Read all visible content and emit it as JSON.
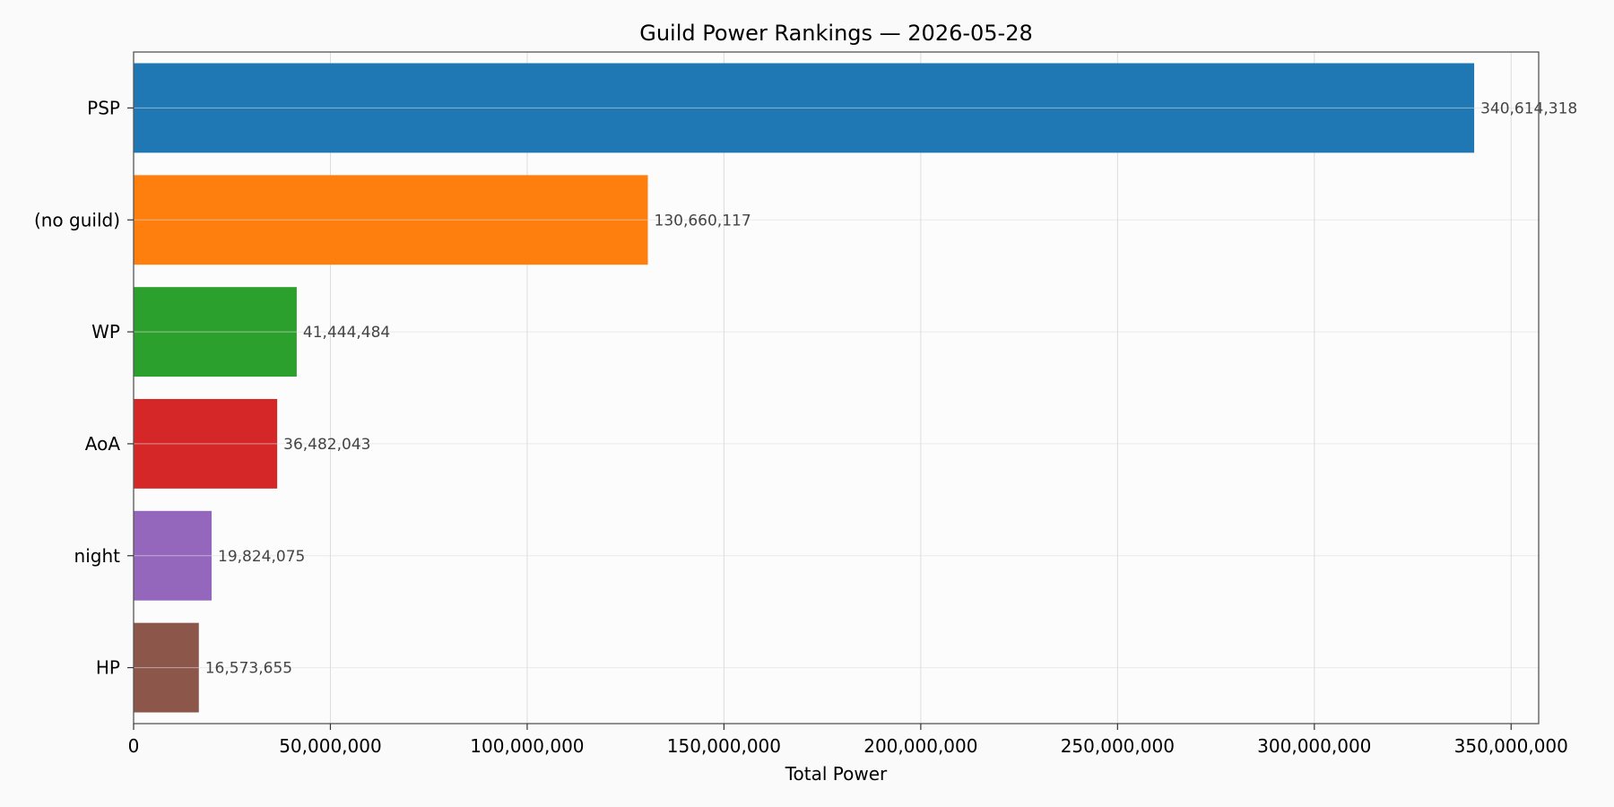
{
  "chart_data": {
    "type": "bar",
    "orientation": "horizontal",
    "title": "Guild Power Rankings — 2026-05-28",
    "xlabel": "Total Power",
    "ylabel": "",
    "xlim": [
      0,
      357000000
    ],
    "xticks": [
      0,
      50000000,
      100000000,
      150000000,
      200000000,
      250000000,
      300000000,
      350000000
    ],
    "xtick_labels": [
      "0",
      "50,000,000",
      "100,000,000",
      "150,000,000",
      "200,000,000",
      "250,000,000",
      "300,000,000",
      "350,000,000"
    ],
    "grid": true,
    "categories": [
      "PSP",
      "(no guild)",
      "WP",
      "AoA",
      "night",
      "HP"
    ],
    "values": [
      340614318,
      130660117,
      41444484,
      36482043,
      19824075,
      16573655
    ],
    "value_labels": [
      "340,614,318",
      "130,660,117",
      "41,444,484",
      "36,482,043",
      "19,824,075",
      "16,573,655"
    ],
    "colors": [
      "#1f77b4",
      "#ff7f0e",
      "#2ca02c",
      "#d62728",
      "#9467bd",
      "#8c564b"
    ]
  }
}
